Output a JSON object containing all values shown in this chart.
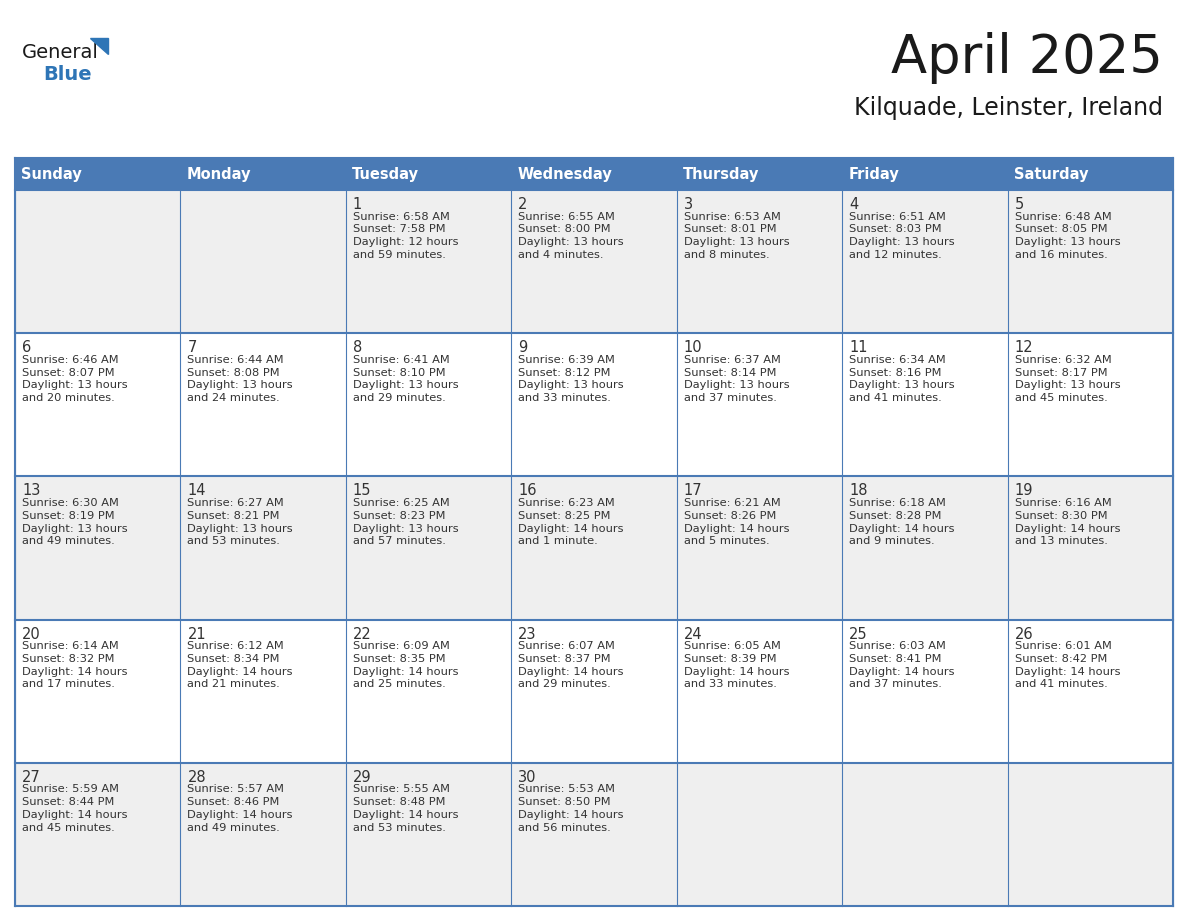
{
  "title": "April 2025",
  "subtitle": "Kilquade, Leinster, Ireland",
  "header_bg_color": "#4a7ab5",
  "header_text_color": "#ffffff",
  "header_font_size": 10.5,
  "day_names": [
    "Sunday",
    "Monday",
    "Tuesday",
    "Wednesday",
    "Thursday",
    "Friday",
    "Saturday"
  ],
  "cell_bg_even": "#efefef",
  "cell_bg_odd": "#ffffff",
  "cell_line_color": "#4a7ab5",
  "title_font_size": 38,
  "subtitle_font_size": 17,
  "cell_text_fontsize": 8.2,
  "day_num_fontsize": 10.5,
  "logo_general_color": "#1a1a1a",
  "logo_blue_color": "#2e75b6",
  "logo_triangle_color": "#2e75b6",
  "weeks": [
    [
      {
        "day": "",
        "lines": []
      },
      {
        "day": "",
        "lines": []
      },
      {
        "day": "1",
        "lines": [
          "Sunrise: 6:58 AM",
          "Sunset: 7:58 PM",
          "Daylight: 12 hours",
          "and 59 minutes."
        ]
      },
      {
        "day": "2",
        "lines": [
          "Sunrise: 6:55 AM",
          "Sunset: 8:00 PM",
          "Daylight: 13 hours",
          "and 4 minutes."
        ]
      },
      {
        "day": "3",
        "lines": [
          "Sunrise: 6:53 AM",
          "Sunset: 8:01 PM",
          "Daylight: 13 hours",
          "and 8 minutes."
        ]
      },
      {
        "day": "4",
        "lines": [
          "Sunrise: 6:51 AM",
          "Sunset: 8:03 PM",
          "Daylight: 13 hours",
          "and 12 minutes."
        ]
      },
      {
        "day": "5",
        "lines": [
          "Sunrise: 6:48 AM",
          "Sunset: 8:05 PM",
          "Daylight: 13 hours",
          "and 16 minutes."
        ]
      }
    ],
    [
      {
        "day": "6",
        "lines": [
          "Sunrise: 6:46 AM",
          "Sunset: 8:07 PM",
          "Daylight: 13 hours",
          "and 20 minutes."
        ]
      },
      {
        "day": "7",
        "lines": [
          "Sunrise: 6:44 AM",
          "Sunset: 8:08 PM",
          "Daylight: 13 hours",
          "and 24 minutes."
        ]
      },
      {
        "day": "8",
        "lines": [
          "Sunrise: 6:41 AM",
          "Sunset: 8:10 PM",
          "Daylight: 13 hours",
          "and 29 minutes."
        ]
      },
      {
        "day": "9",
        "lines": [
          "Sunrise: 6:39 AM",
          "Sunset: 8:12 PM",
          "Daylight: 13 hours",
          "and 33 minutes."
        ]
      },
      {
        "day": "10",
        "lines": [
          "Sunrise: 6:37 AM",
          "Sunset: 8:14 PM",
          "Daylight: 13 hours",
          "and 37 minutes."
        ]
      },
      {
        "day": "11",
        "lines": [
          "Sunrise: 6:34 AM",
          "Sunset: 8:16 PM",
          "Daylight: 13 hours",
          "and 41 minutes."
        ]
      },
      {
        "day": "12",
        "lines": [
          "Sunrise: 6:32 AM",
          "Sunset: 8:17 PM",
          "Daylight: 13 hours",
          "and 45 minutes."
        ]
      }
    ],
    [
      {
        "day": "13",
        "lines": [
          "Sunrise: 6:30 AM",
          "Sunset: 8:19 PM",
          "Daylight: 13 hours",
          "and 49 minutes."
        ]
      },
      {
        "day": "14",
        "lines": [
          "Sunrise: 6:27 AM",
          "Sunset: 8:21 PM",
          "Daylight: 13 hours",
          "and 53 minutes."
        ]
      },
      {
        "day": "15",
        "lines": [
          "Sunrise: 6:25 AM",
          "Sunset: 8:23 PM",
          "Daylight: 13 hours",
          "and 57 minutes."
        ]
      },
      {
        "day": "16",
        "lines": [
          "Sunrise: 6:23 AM",
          "Sunset: 8:25 PM",
          "Daylight: 14 hours",
          "and 1 minute."
        ]
      },
      {
        "day": "17",
        "lines": [
          "Sunrise: 6:21 AM",
          "Sunset: 8:26 PM",
          "Daylight: 14 hours",
          "and 5 minutes."
        ]
      },
      {
        "day": "18",
        "lines": [
          "Sunrise: 6:18 AM",
          "Sunset: 8:28 PM",
          "Daylight: 14 hours",
          "and 9 minutes."
        ]
      },
      {
        "day": "19",
        "lines": [
          "Sunrise: 6:16 AM",
          "Sunset: 8:30 PM",
          "Daylight: 14 hours",
          "and 13 minutes."
        ]
      }
    ],
    [
      {
        "day": "20",
        "lines": [
          "Sunrise: 6:14 AM",
          "Sunset: 8:32 PM",
          "Daylight: 14 hours",
          "and 17 minutes."
        ]
      },
      {
        "day": "21",
        "lines": [
          "Sunrise: 6:12 AM",
          "Sunset: 8:34 PM",
          "Daylight: 14 hours",
          "and 21 minutes."
        ]
      },
      {
        "day": "22",
        "lines": [
          "Sunrise: 6:09 AM",
          "Sunset: 8:35 PM",
          "Daylight: 14 hours",
          "and 25 minutes."
        ]
      },
      {
        "day": "23",
        "lines": [
          "Sunrise: 6:07 AM",
          "Sunset: 8:37 PM",
          "Daylight: 14 hours",
          "and 29 minutes."
        ]
      },
      {
        "day": "24",
        "lines": [
          "Sunrise: 6:05 AM",
          "Sunset: 8:39 PM",
          "Daylight: 14 hours",
          "and 33 minutes."
        ]
      },
      {
        "day": "25",
        "lines": [
          "Sunrise: 6:03 AM",
          "Sunset: 8:41 PM",
          "Daylight: 14 hours",
          "and 37 minutes."
        ]
      },
      {
        "day": "26",
        "lines": [
          "Sunrise: 6:01 AM",
          "Sunset: 8:42 PM",
          "Daylight: 14 hours",
          "and 41 minutes."
        ]
      }
    ],
    [
      {
        "day": "27",
        "lines": [
          "Sunrise: 5:59 AM",
          "Sunset: 8:44 PM",
          "Daylight: 14 hours",
          "and 45 minutes."
        ]
      },
      {
        "day": "28",
        "lines": [
          "Sunrise: 5:57 AM",
          "Sunset: 8:46 PM",
          "Daylight: 14 hours",
          "and 49 minutes."
        ]
      },
      {
        "day": "29",
        "lines": [
          "Sunrise: 5:55 AM",
          "Sunset: 8:48 PM",
          "Daylight: 14 hours",
          "and 53 minutes."
        ]
      },
      {
        "day": "30",
        "lines": [
          "Sunrise: 5:53 AM",
          "Sunset: 8:50 PM",
          "Daylight: 14 hours",
          "and 56 minutes."
        ]
      },
      {
        "day": "",
        "lines": []
      },
      {
        "day": "",
        "lines": []
      },
      {
        "day": "",
        "lines": []
      }
    ]
  ]
}
